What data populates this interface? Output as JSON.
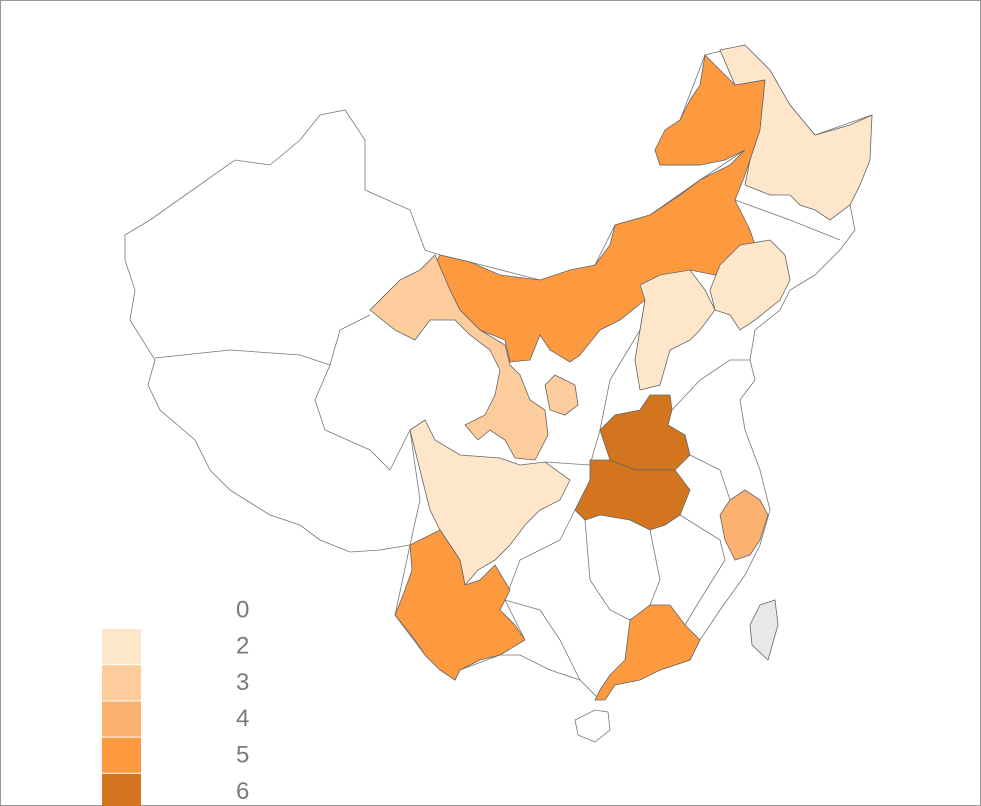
{
  "chart_data": {
    "type": "choropleth",
    "legend": {
      "breaks": [
        0,
        2,
        3,
        4,
        5,
        6
      ],
      "colors": [
        "#fde6c9",
        "#fdcc9c",
        "#fdb170",
        "#fd9a40",
        "#d2751e"
      ]
    },
    "missing_color": "#e8e8e8",
    "regions": [
      {
        "value": 5
      },
      {
        "value": 2
      },
      {
        "value": 2
      },
      {
        "value": 2
      },
      {
        "value": 3
      },
      {
        "value": 3
      },
      {
        "value": 6
      },
      {
        "value": 6
      },
      {
        "value": 2
      },
      {
        "value": 5
      },
      {
        "value": 4
      },
      {
        "value": 5
      },
      {
        "value": null
      }
    ]
  }
}
